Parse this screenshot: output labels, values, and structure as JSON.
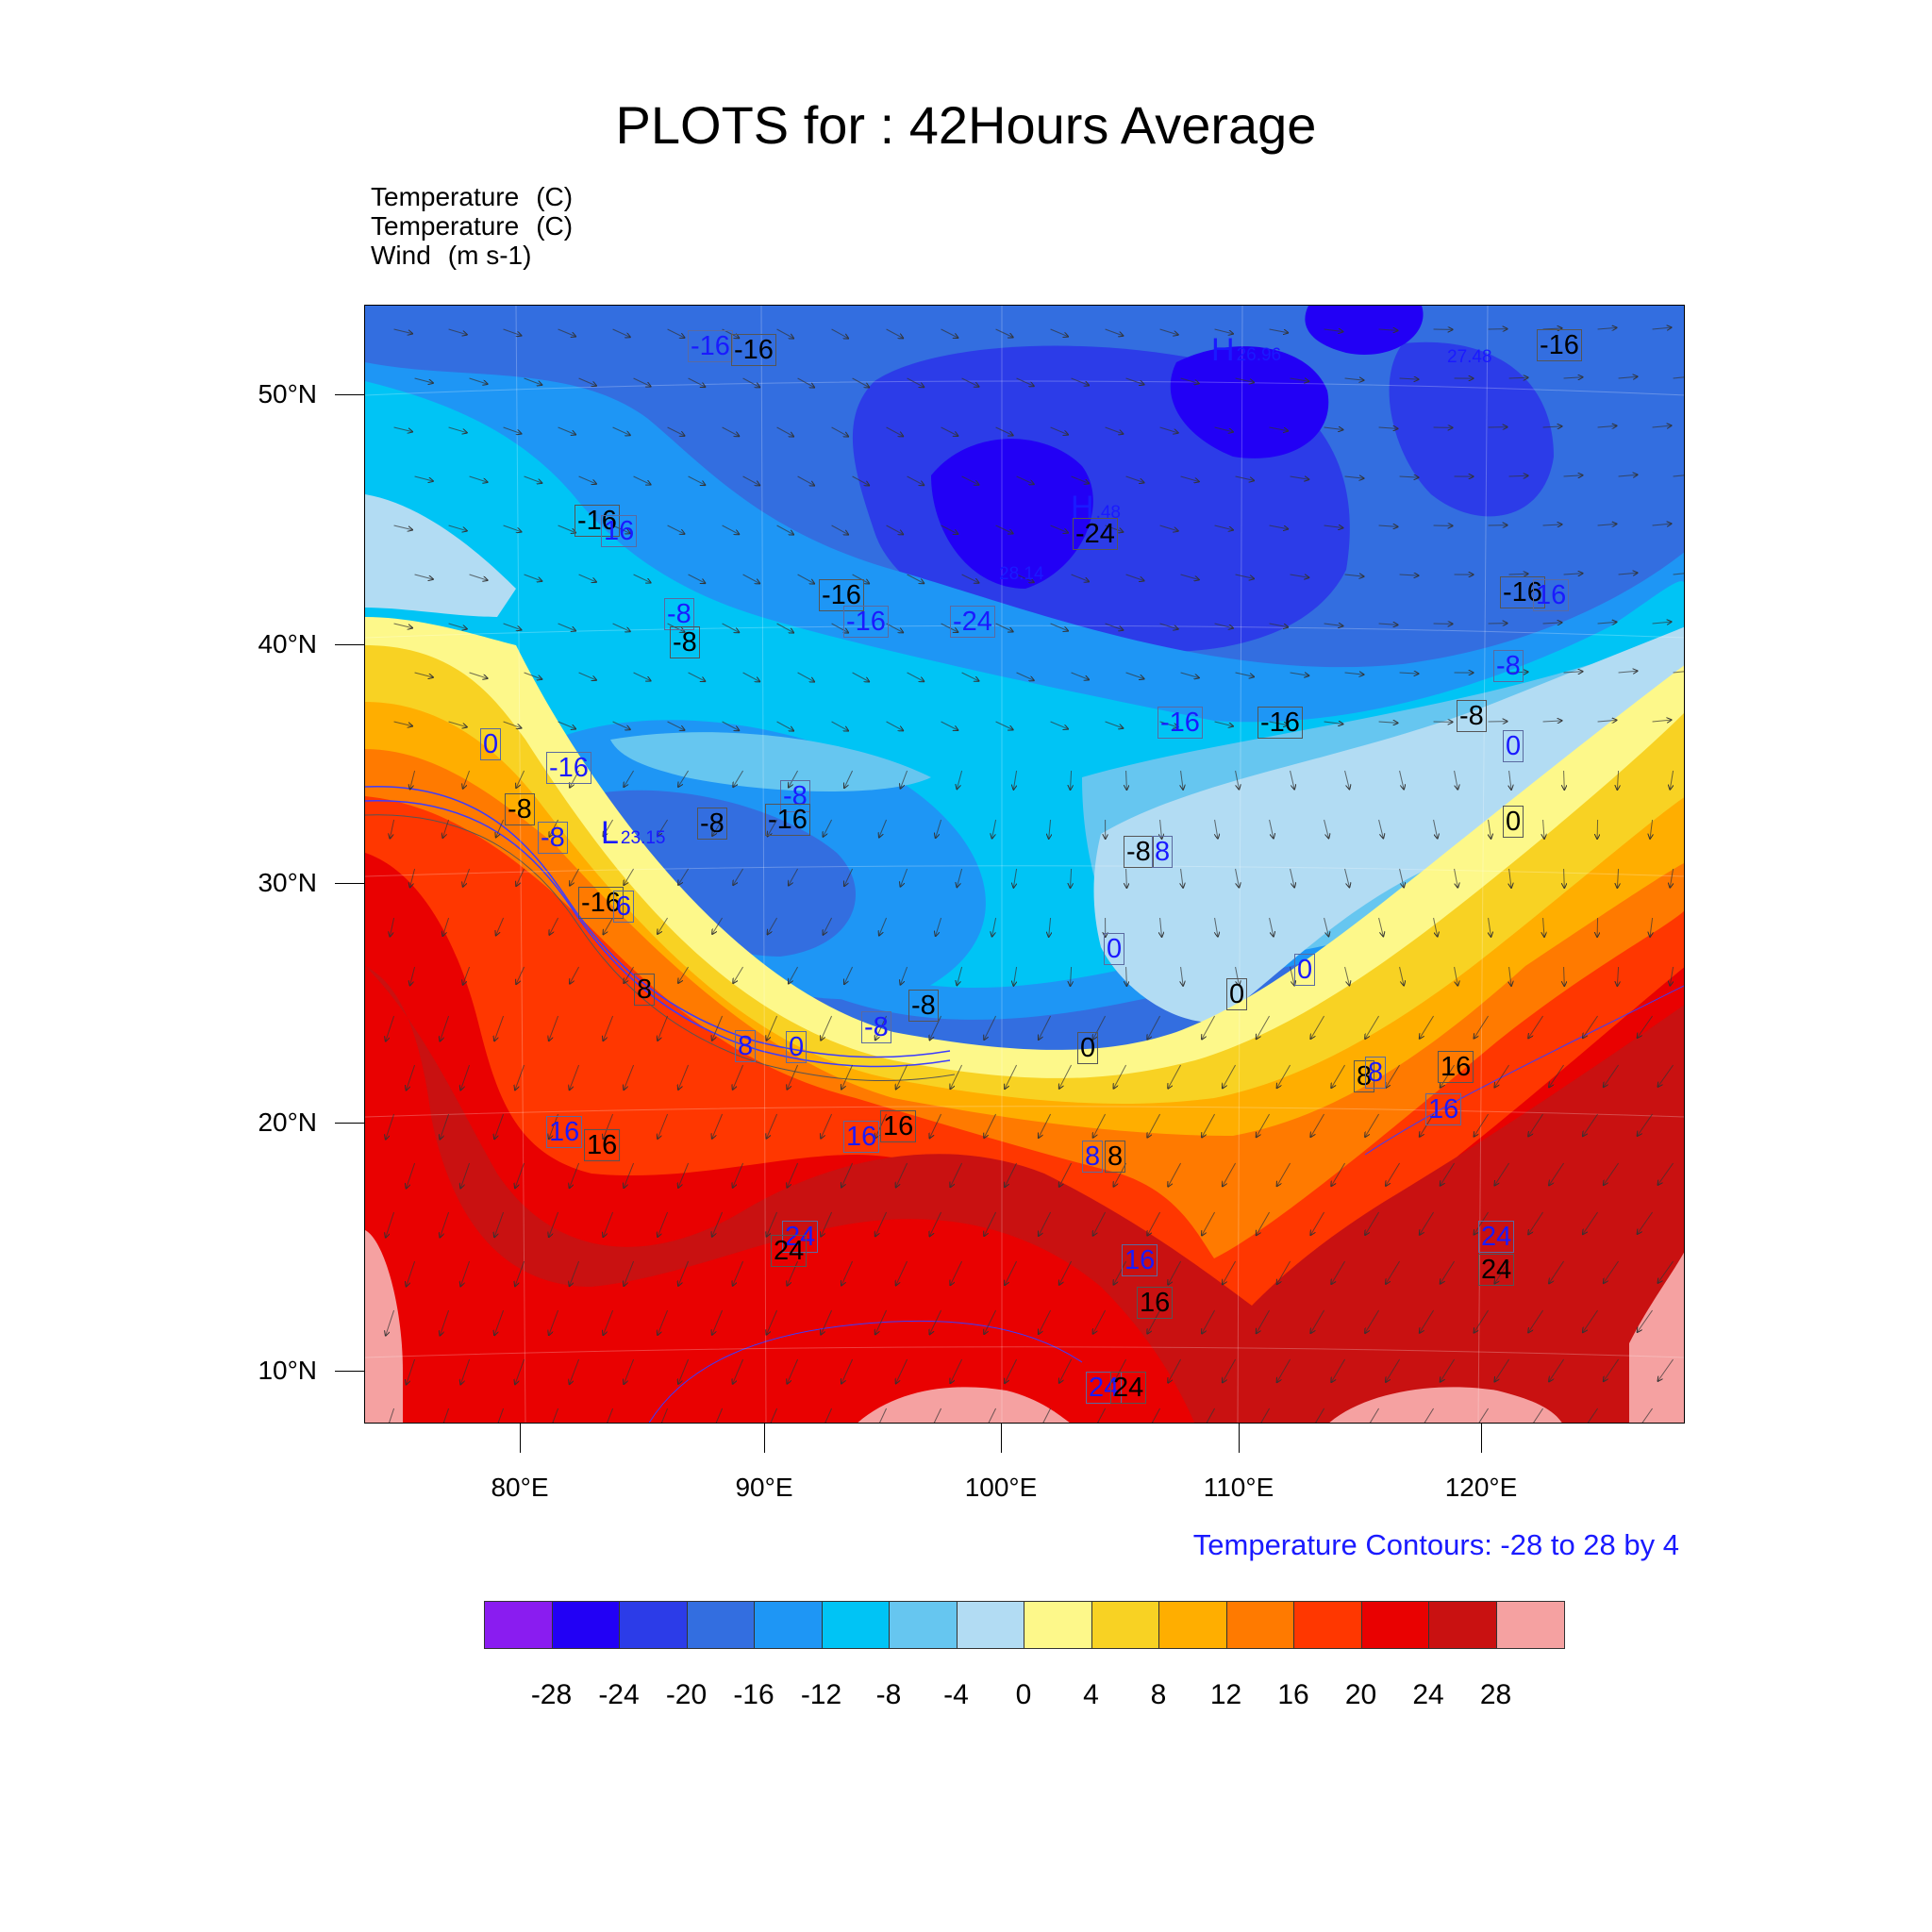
{
  "title": "PLOTS for : 42Hours Average",
  "variables": [
    {
      "name": "Temperature",
      "unit": "(C)"
    },
    {
      "name": "Temperature",
      "unit": "(C)"
    },
    {
      "name": "Wind",
      "unit": "(m s-1)"
    }
  ],
  "lat_labels": [
    "50°N",
    "40°N",
    "30°N",
    "20°N",
    "10°N"
  ],
  "lon_labels": [
    "80°E",
    "90°E",
    "100°E",
    "110°E",
    "120°E"
  ],
  "contour_note": "Temperature Contours: -28 to 28 by 4",
  "colorbar": {
    "labels": [
      "-28",
      "-24",
      "-20",
      "-16",
      "-12",
      "-8",
      "-4",
      "0",
      "4",
      "8",
      "12",
      "16",
      "20",
      "24",
      "28"
    ],
    "colors": [
      "#8a1cf0",
      "#2200f5",
      "#2c3ce8",
      "#336ee0",
      "#1e96f5",
      "#00c4f5",
      "#66c6f0",
      "#b2dcf3",
      "#fdf88a",
      "#f8d223",
      "#ffae00",
      "#ff7a00",
      "#ff3700",
      "#e90101",
      "#c91111",
      "#f5a1a1"
    ]
  },
  "contour_labels": [
    {
      "text": "-16",
      "color": "blue"
    },
    {
      "text": "-16",
      "color": "black"
    },
    {
      "text": "-16",
      "color": "black"
    },
    {
      "text": "16",
      "color": "blue"
    },
    {
      "text": "-16",
      "color": "black"
    },
    {
      "text": "-16",
      "color": "blue"
    },
    {
      "text": "-24",
      "color": "blue"
    },
    {
      "text": "-24",
      "color": "black"
    },
    {
      "text": "-8",
      "color": "blue"
    },
    {
      "text": "-8",
      "color": "black"
    },
    {
      "text": "-16",
      "color": "black"
    },
    {
      "text": "16",
      "color": "blue"
    },
    {
      "text": "-16",
      "color": "black"
    },
    {
      "text": "-8",
      "color": "blue"
    },
    {
      "text": "0",
      "color": "blue"
    },
    {
      "text": "-8",
      "color": "black"
    },
    {
      "text": "0",
      "color": "black"
    },
    {
      "text": "0",
      "color": "blue"
    },
    {
      "text": "-16",
      "color": "blue"
    },
    {
      "text": "-8",
      "color": "black"
    },
    {
      "text": "-8",
      "color": "blue"
    },
    {
      "text": "-8",
      "color": "black"
    },
    {
      "text": "-8",
      "color": "blue"
    },
    {
      "text": "-16",
      "color": "black"
    },
    {
      "text": "-16",
      "color": "blue"
    },
    {
      "text": "-16",
      "color": "black"
    },
    {
      "text": "-8",
      "color": "black"
    },
    {
      "text": "8",
      "color": "blue"
    },
    {
      "text": "-16",
      "color": "black"
    },
    {
      "text": "6",
      "color": "blue"
    },
    {
      "text": "0",
      "color": "blue"
    },
    {
      "text": "0",
      "color": "blue"
    },
    {
      "text": "0",
      "color": "black"
    },
    {
      "text": "8",
      "color": "black"
    },
    {
      "text": "-8",
      "color": "black"
    },
    {
      "text": "-8",
      "color": "blue"
    },
    {
      "text": "8",
      "color": "blue"
    },
    {
      "text": "0",
      "color": "blue"
    },
    {
      "text": "0",
      "color": "black"
    },
    {
      "text": "8",
      "color": "black"
    },
    {
      "text": "8",
      "color": "blue"
    },
    {
      "text": "16",
      "color": "black"
    },
    {
      "text": "16",
      "color": "blue"
    },
    {
      "text": "16",
      "color": "blue"
    },
    {
      "text": "16",
      "color": "black"
    },
    {
      "text": "16",
      "color": "blue"
    },
    {
      "text": "16",
      "color": "black"
    },
    {
      "text": "8",
      "color": "blue"
    },
    {
      "text": "8",
      "color": "black"
    },
    {
      "text": "24",
      "color": "blue"
    },
    {
      "text": "24",
      "color": "black"
    },
    {
      "text": "16",
      "color": "blue"
    },
    {
      "text": "16",
      "color": "black"
    },
    {
      "text": "24",
      "color": "blue"
    },
    {
      "text": "24",
      "color": "black"
    },
    {
      "text": "24",
      "color": "blue"
    },
    {
      "text": "24",
      "color": "black"
    }
  ],
  "high_low_markers": [
    {
      "symbol": "H",
      "value": "26.96"
    },
    {
      "symbol": "",
      "value": "27.48"
    },
    {
      "symbol": "H",
      "value": ".48"
    },
    {
      "symbol": "",
      "value": "28.14"
    },
    {
      "symbol": "L",
      "value": "23.15"
    }
  ]
}
